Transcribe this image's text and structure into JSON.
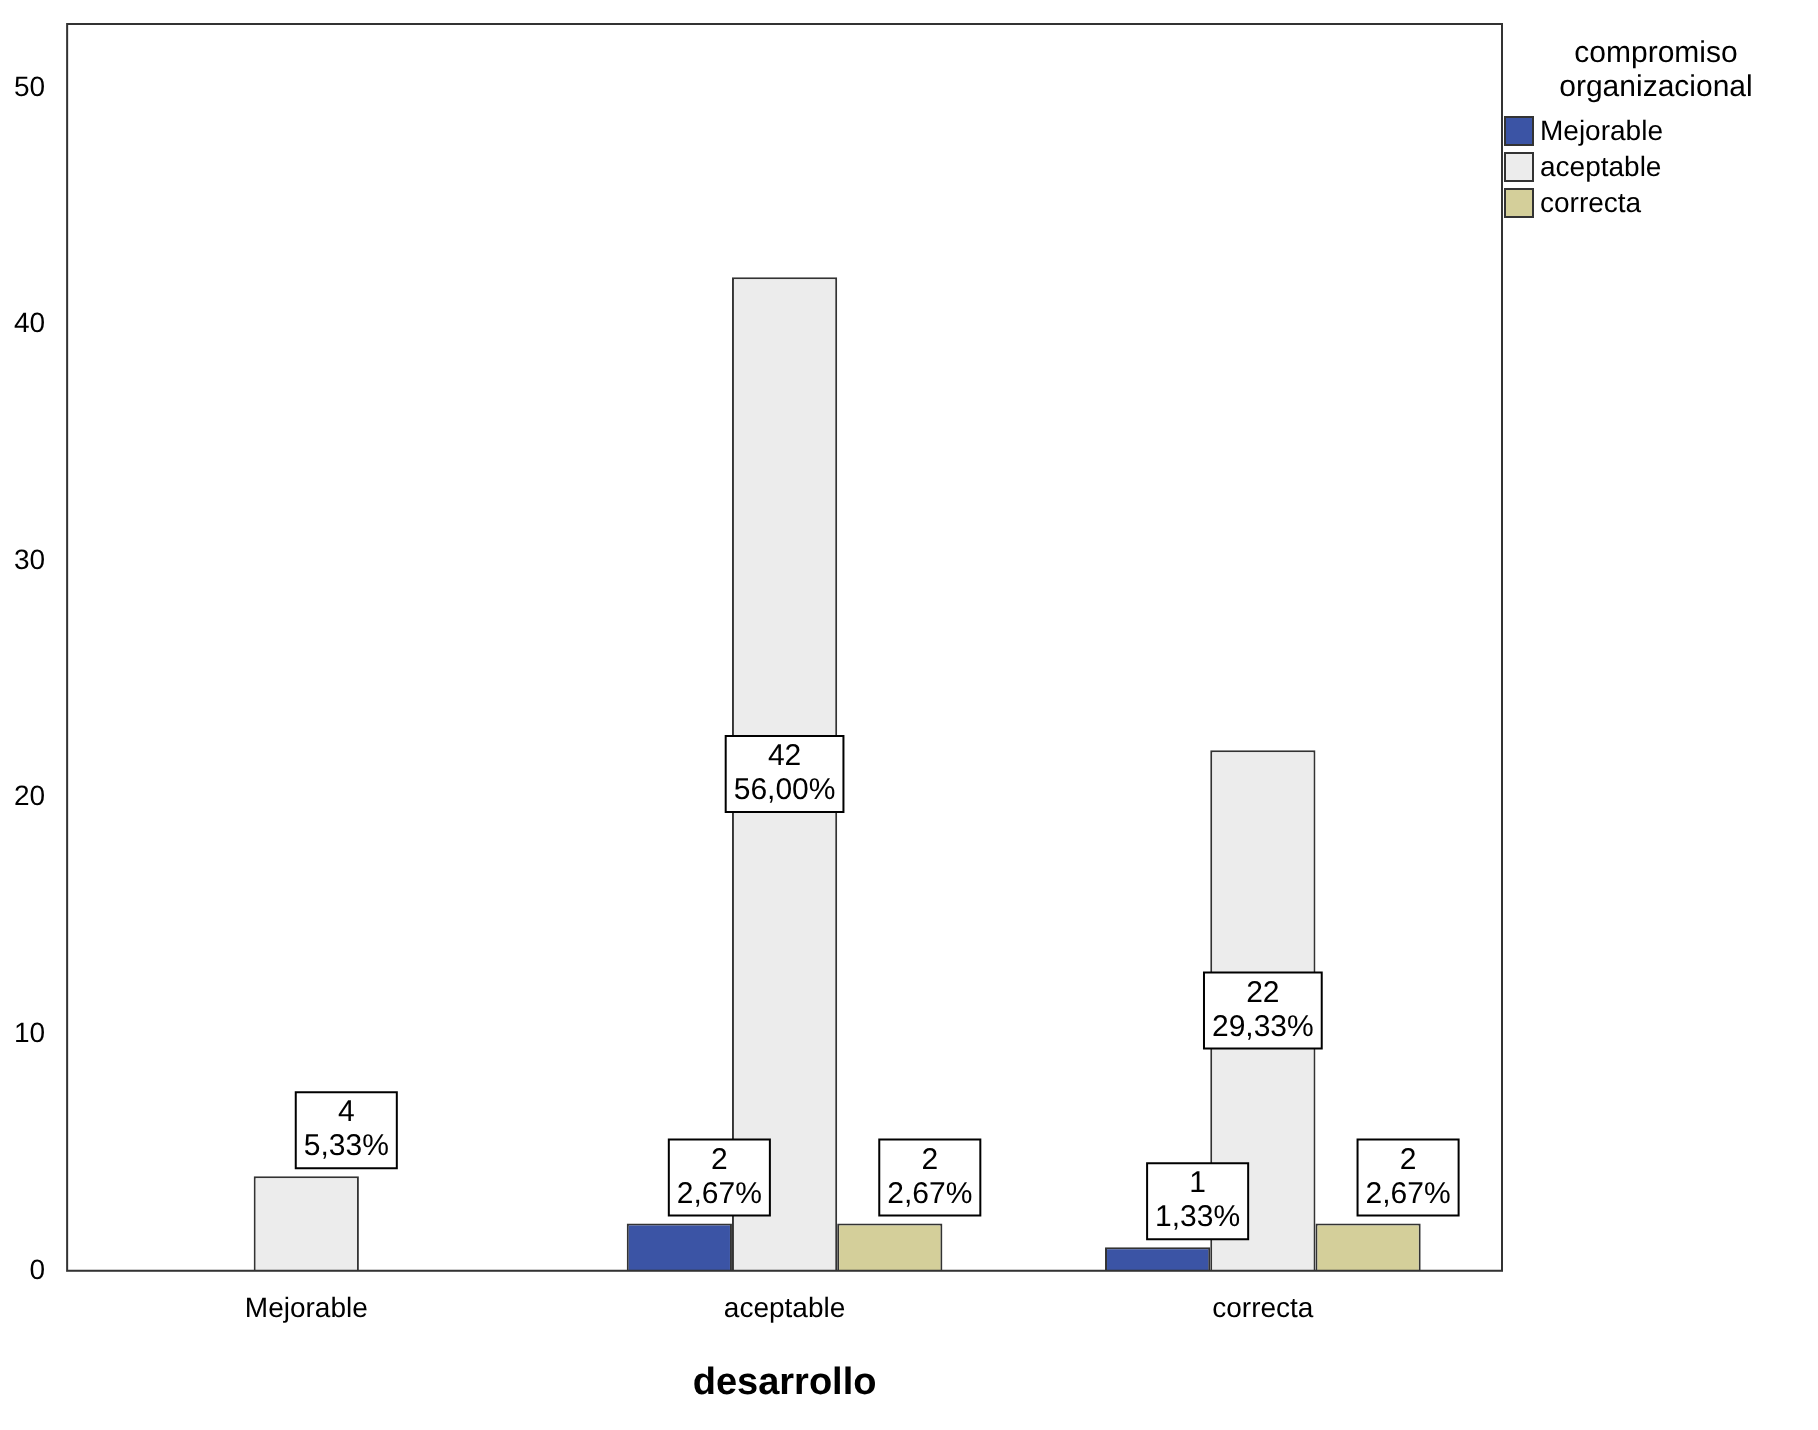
{
  "chart_data": {
    "type": "bar",
    "xlabel": "desarrollo",
    "legend_title": "compromiso organizacional",
    "categories": [
      "Mejorable",
      "aceptable",
      "correcta"
    ],
    "series": [
      {
        "name": "Mejorable",
        "color": "#3b54a5",
        "values": [
          null,
          2,
          1
        ],
        "value_labels": [
          null,
          "2\n2,67%",
          "1\n1,33%"
        ]
      },
      {
        "name": "aceptable",
        "color": "#ececec",
        "values": [
          4,
          42,
          22
        ],
        "value_labels": [
          "4\n5,33%",
          "42\n56,00%",
          "22\n29,33%"
        ]
      },
      {
        "name": "correcta",
        "color": "#d4cf9a",
        "values": [
          null,
          2,
          2
        ],
        "value_labels": [
          null,
          "2\n2,67%",
          "2\n2,67%"
        ]
      }
    ],
    "ylim": [
      0,
      52.7
    ],
    "yticks": [
      0,
      10,
      20,
      30,
      40,
      50
    ],
    "grid": false,
    "legend": "top right"
  }
}
